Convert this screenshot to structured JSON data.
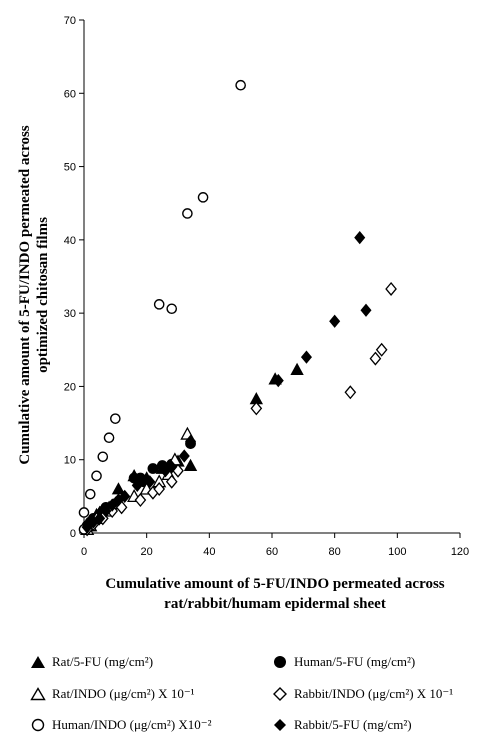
{
  "chart_data": {
    "type": "scatter",
    "xlabel_lines": [
      "Cumulative amount of 5-FU/INDO permeated across",
      "rat/rabbit/humam epidermal sheet"
    ],
    "ylabel_lines": [
      "Cumulative amount of 5-FU/INDO permeated across",
      "optimized chitosan films"
    ],
    "xlim": [
      0,
      120
    ],
    "ylim": [
      0,
      70
    ],
    "xticks": [
      0,
      20,
      40,
      60,
      80,
      100,
      120
    ],
    "yticks": [
      0,
      10,
      20,
      30,
      40,
      50,
      60,
      70
    ],
    "grid": false,
    "legend_placement": "bottom",
    "series": [
      {
        "name": "Rat/5-FU (mg/cm²)",
        "marker": "filled-triangle",
        "points": [
          [
            1,
            0.5
          ],
          [
            2,
            1
          ],
          [
            3,
            1.8
          ],
          [
            4,
            2.5
          ],
          [
            5,
            2.8
          ],
          [
            6,
            3
          ],
          [
            7,
            3.3
          ],
          [
            8,
            3.5
          ],
          [
            11,
            6
          ],
          [
            16,
            7.8
          ],
          [
            20,
            7.5
          ],
          [
            25,
            8.8
          ],
          [
            30,
            9.8
          ],
          [
            34,
            9.2
          ],
          [
            55,
            18.3
          ],
          [
            61,
            21
          ],
          [
            68,
            22.3
          ]
        ]
      },
      {
        "name": "Human/5-FU (mg/cm²)",
        "marker": "filled-circle",
        "points": [
          [
            1,
            1
          ],
          [
            2,
            1.5
          ],
          [
            3,
            2
          ],
          [
            5,
            2.5
          ],
          [
            6,
            3
          ],
          [
            7,
            3.5
          ],
          [
            10,
            4
          ],
          [
            16,
            7.5
          ],
          [
            18,
            7.5
          ],
          [
            19,
            7
          ],
          [
            22,
            8.8
          ],
          [
            25,
            9.2
          ],
          [
            28,
            9.4
          ],
          [
            34,
            12.2
          ]
        ]
      },
      {
        "name": "Rat/INDO (μg/cm²) X 10⁻¹",
        "marker": "open-triangle",
        "points": [
          [
            1,
            0.5
          ],
          [
            2,
            1
          ],
          [
            4,
            2
          ],
          [
            7,
            3
          ],
          [
            10,
            4
          ],
          [
            16,
            5
          ],
          [
            20,
            6
          ],
          [
            24,
            7
          ],
          [
            27,
            8
          ],
          [
            29,
            10
          ],
          [
            33,
            13.5
          ]
        ]
      },
      {
        "name": "Rabbit/INDO (μg/cm²) X 10⁻¹",
        "marker": "open-diamond",
        "points": [
          [
            1,
            0.5
          ],
          [
            3,
            1.2
          ],
          [
            6,
            2
          ],
          [
            9,
            3
          ],
          [
            12,
            3.5
          ],
          [
            18,
            4.5
          ],
          [
            22,
            5.5
          ],
          [
            24,
            6
          ],
          [
            28,
            7
          ],
          [
            30,
            8.5
          ],
          [
            55,
            17
          ],
          [
            85,
            19.2
          ],
          [
            93,
            23.8
          ],
          [
            95,
            25
          ],
          [
            98,
            33.3
          ]
        ]
      },
      {
        "name": "Human/INDO (μg/cm²) X10⁻²",
        "marker": "open-circle",
        "points": [
          [
            0,
            0.5
          ],
          [
            0,
            2.8
          ],
          [
            2,
            5.3
          ],
          [
            4,
            7.8
          ],
          [
            6,
            10.4
          ],
          [
            8,
            13
          ],
          [
            10,
            15.6
          ],
          [
            24,
            31.2
          ],
          [
            28,
            30.6
          ],
          [
            33,
            43.6
          ],
          [
            38,
            45.8
          ],
          [
            50,
            61.1
          ]
        ]
      },
      {
        "name": "Rabbit/5-FU (mg/cm²)",
        "marker": "filled-diamond",
        "points": [
          [
            1,
            0.8
          ],
          [
            3,
            1.5
          ],
          [
            5,
            2
          ],
          [
            7,
            3
          ],
          [
            9,
            3.8
          ],
          [
            11,
            4.5
          ],
          [
            13,
            5
          ],
          [
            17,
            6.5
          ],
          [
            21,
            7
          ],
          [
            26,
            8.5
          ],
          [
            28,
            9
          ],
          [
            32,
            10.5
          ],
          [
            34,
            12.5
          ],
          [
            62,
            20.8
          ],
          [
            71,
            24
          ],
          [
            80,
            28.9
          ],
          [
            90,
            30.4
          ],
          [
            88,
            40.3
          ]
        ]
      }
    ]
  }
}
